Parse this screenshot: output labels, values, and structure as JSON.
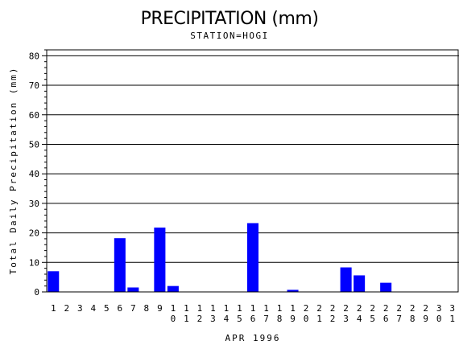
{
  "chart_data": {
    "type": "bar",
    "title": "PRECIPITATION (mm)",
    "subtitle": "STATION=HOGI",
    "xlabel": "APR 1996",
    "ylabel": "Total Daily Precipitation (mm)",
    "ylim": [
      0,
      82
    ],
    "yticks": [
      0,
      10,
      20,
      30,
      40,
      50,
      60,
      70,
      80
    ],
    "grid": true,
    "legend": "none",
    "bar_color": "#0000ff",
    "categories": [
      "1",
      "2",
      "3",
      "4",
      "5",
      "6",
      "7",
      "8",
      "9",
      "10",
      "11",
      "12",
      "13",
      "14",
      "15",
      "16",
      "17",
      "18",
      "19",
      "20",
      "21",
      "22",
      "23",
      "24",
      "25",
      "26",
      "27",
      "28",
      "29",
      "30",
      "31"
    ],
    "values": [
      7.0,
      0,
      0,
      0,
      0,
      18.2,
      1.5,
      0,
      21.8,
      2.0,
      0,
      0,
      0,
      0,
      0,
      23.3,
      0,
      0,
      0.7,
      0,
      0,
      0,
      8.3,
      5.6,
      0,
      3.1,
      0,
      0,
      0,
      0,
      0
    ]
  }
}
